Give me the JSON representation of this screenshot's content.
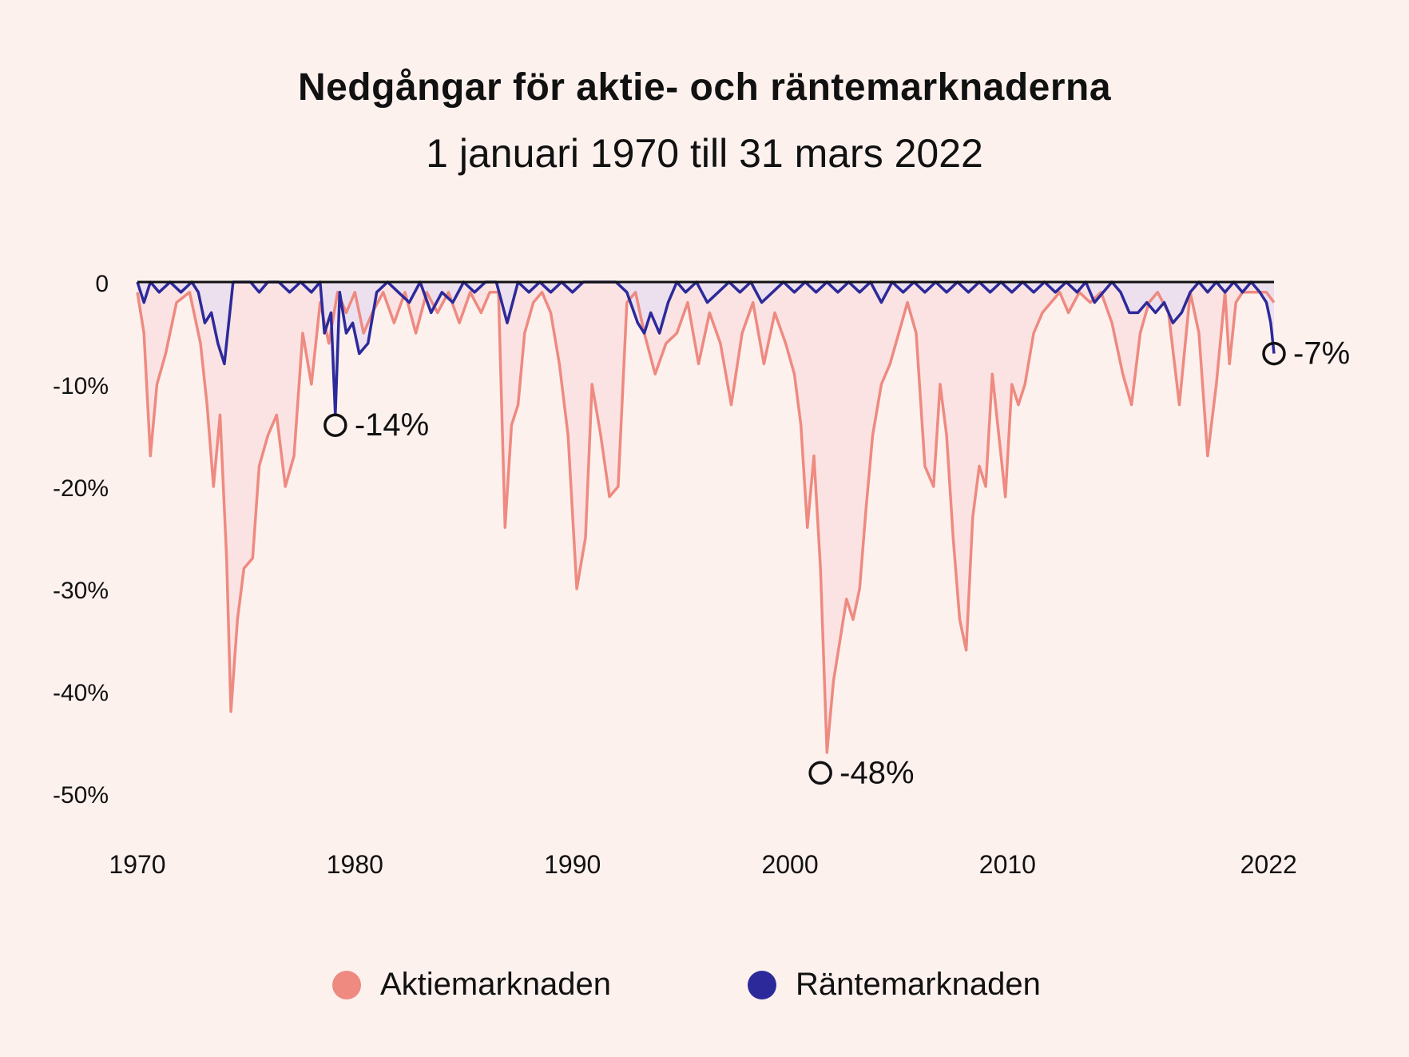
{
  "header": {
    "title": "Nedgångar för aktie- och räntemarknaderna",
    "subtitle": "1 januari 1970 till 31 mars 2022"
  },
  "colors": {
    "stocks": "#ee8a80",
    "stocks_fill": "#fbe3e3",
    "bonds": "#2c2a9a",
    "bonds_fill": "#eadff0",
    "zero_line": "#111111",
    "background": "#fdf1ee"
  },
  "legend": [
    {
      "label": "Aktiemarknaden",
      "color": "#ee8a80"
    },
    {
      "label": "Räntemarknaden",
      "color": "#2c2a9a"
    }
  ],
  "chart_data": {
    "type": "area",
    "title": "Nedgångar för aktie- och räntemarknaderna",
    "subtitle": "1 januari 1970 till 31 mars 2022",
    "xlabel": "",
    "ylabel": "",
    "x_ticks": [
      "1970",
      "1980",
      "1990",
      "2000",
      "2010",
      "2022"
    ],
    "y_ticks": [
      "0",
      "-10%",
      "-20%",
      "-30%",
      "-40%",
      "-50%"
    ],
    "xlim": [
      1970,
      2022.25
    ],
    "ylim": [
      -50,
      0
    ],
    "grid": false,
    "legend_position": "bottom",
    "series": [
      {
        "name": "Aktiemarknaden",
        "color": "#ee8a80",
        "x": [
          1970.0,
          1970.3,
          1970.6,
          1970.9,
          1971.3,
          1971.8,
          1972.4,
          1972.9,
          1973.2,
          1973.5,
          1973.8,
          1974.1,
          1974.3,
          1974.6,
          1974.9,
          1975.3,
          1975.6,
          1976.0,
          1976.4,
          1976.8,
          1977.2,
          1977.6,
          1978.0,
          1978.4,
          1978.8,
          1979.2,
          1979.6,
          1980.0,
          1980.4,
          1980.8,
          1981.3,
          1981.8,
          1982.3,
          1982.8,
          1983.3,
          1983.8,
          1984.3,
          1984.8,
          1985.3,
          1985.8,
          1986.2,
          1986.6,
          1986.9,
          1987.2,
          1987.5,
          1987.8,
          1988.2,
          1988.6,
          1989.0,
          1989.4,
          1989.8,
          1990.2,
          1990.6,
          1990.9,
          1991.3,
          1991.7,
          1992.1,
          1992.5,
          1992.9,
          1993.3,
          1993.8,
          1994.3,
          1994.8,
          1995.3,
          1995.8,
          1996.3,
          1996.8,
          1997.3,
          1997.8,
          1998.3,
          1998.8,
          1999.3,
          1999.8,
          2000.2,
          2000.5,
          2000.8,
          2001.1,
          2001.4,
          2001.7,
          2002.0,
          2002.3,
          2002.6,
          2002.9,
          2003.2,
          2003.5,
          2003.8,
          2004.2,
          2004.6,
          2005.0,
          2005.4,
          2005.8,
          2006.2,
          2006.6,
          2006.9,
          2007.2,
          2007.5,
          2007.8,
          2008.1,
          2008.4,
          2008.7,
          2009.0,
          2009.3,
          2009.6,
          2009.9,
          2010.2,
          2010.5,
          2010.8,
          2011.2,
          2011.6,
          2012.0,
          2012.4,
          2012.8,
          2013.3,
          2013.8,
          2014.3,
          2014.8,
          2015.3,
          2015.7,
          2016.1,
          2016.5,
          2016.9,
          2017.4,
          2017.9,
          2018.4,
          2018.8,
          2019.2,
          2019.6,
          2020.0,
          2020.2,
          2020.5,
          2020.8,
          2021.2,
          2021.6,
          2021.9,
          2022.25
        ],
        "y": [
          -1,
          -5,
          -17,
          -10,
          -7,
          -2,
          -1,
          -6,
          -12,
          -20,
          -13,
          -27,
          -42,
          -33,
          -28,
          -27,
          -18,
          -15,
          -13,
          -20,
          -17,
          -5,
          -10,
          -2,
          -6,
          -1,
          -3,
          -1,
          -5,
          -3,
          -1,
          -4,
          -1,
          -5,
          -1,
          -3,
          -1,
          -4,
          -1,
          -3,
          -1,
          -1,
          -24,
          -14,
          -12,
          -5,
          -2,
          -1,
          -3,
          -8,
          -15,
          -30,
          -25,
          -10,
          -15,
          -21,
          -20,
          -2,
          -1,
          -5,
          -9,
          -6,
          -5,
          -2,
          -8,
          -3,
          -6,
          -12,
          -5,
          -2,
          -8,
          -3,
          -6,
          -9,
          -14,
          -24,
          -17,
          -28,
          -46,
          -39,
          -35,
          -31,
          -33,
          -30,
          -22,
          -15,
          -10,
          -8,
          -5,
          -2,
          -5,
          -18,
          -20,
          -10,
          -15,
          -25,
          -33,
          -36,
          -23,
          -18,
          -20,
          -9,
          -15,
          -21,
          -10,
          -12,
          -10,
          -5,
          -3,
          -2,
          -1,
          -3,
          -1,
          -2,
          -1,
          -4,
          -9,
          -12,
          -5,
          -2,
          -1,
          -3,
          -12,
          -1,
          -5,
          -17,
          -10,
          -1,
          -8,
          -2,
          -1,
          -1,
          -1,
          -1,
          -2
        ]
      },
      {
        "name": "Räntemarknaden",
        "color": "#2c2a9a",
        "x": [
          1970.0,
          1970.3,
          1970.6,
          1971.0,
          1971.5,
          1972.0,
          1972.5,
          1972.8,
          1973.1,
          1973.4,
          1973.7,
          1974.0,
          1974.4,
          1974.8,
          1975.2,
          1975.6,
          1976.0,
          1976.5,
          1977.0,
          1977.5,
          1978.0,
          1978.4,
          1978.6,
          1978.9,
          1979.1,
          1979.3,
          1979.6,
          1979.9,
          1980.2,
          1980.6,
          1981.0,
          1981.5,
          1982.0,
          1982.5,
          1983.0,
          1983.5,
          1984.0,
          1984.5,
          1985.0,
          1985.5,
          1986.0,
          1986.5,
          1987.0,
          1987.5,
          1988.0,
          1988.5,
          1989.0,
          1989.5,
          1990.0,
          1990.5,
          1991.0,
          1991.5,
          1992.0,
          1992.5,
          1993.0,
          1993.3,
          1993.6,
          1994.0,
          1994.4,
          1994.8,
          1995.2,
          1995.7,
          1996.2,
          1996.7,
          1997.2,
          1997.7,
          1998.2,
          1998.7,
          1999.2,
          1999.7,
          2000.2,
          2000.7,
          2001.2,
          2001.7,
          2002.2,
          2002.7,
          2003.2,
          2003.7,
          2004.2,
          2004.7,
          2005.2,
          2005.7,
          2006.2,
          2006.7,
          2007.2,
          2007.7,
          2008.2,
          2008.7,
          2009.2,
          2009.7,
          2010.2,
          2010.7,
          2011.2,
          2011.7,
          2012.2,
          2012.7,
          2013.2,
          2013.6,
          2014.0,
          2014.4,
          2014.8,
          2015.2,
          2015.6,
          2016.0,
          2016.4,
          2016.8,
          2017.2,
          2017.6,
          2018.0,
          2018.4,
          2018.8,
          2019.2,
          2019.6,
          2020.0,
          2020.4,
          2020.8,
          2021.2,
          2021.6,
          2021.9,
          2022.1,
          2022.25
        ],
        "y": [
          0,
          -2,
          0,
          -1,
          0,
          -1,
          0,
          -1,
          -4,
          -3,
          -6,
          -8,
          0,
          0,
          0,
          -1,
          0,
          0,
          -1,
          0,
          -1,
          0,
          -5,
          -3,
          -13,
          -1,
          -5,
          -4,
          -7,
          -6,
          -1,
          0,
          -1,
          -2,
          0,
          -3,
          -1,
          -2,
          0,
          -1,
          0,
          0,
          -4,
          0,
          -1,
          0,
          -1,
          0,
          -1,
          0,
          0,
          0,
          0,
          -1,
          -4,
          -5,
          -3,
          -5,
          -2,
          0,
          -1,
          0,
          -2,
          -1,
          0,
          -1,
          0,
          -2,
          -1,
          0,
          -1,
          0,
          -1,
          0,
          -1,
          0,
          -1,
          0,
          -2,
          0,
          -1,
          0,
          -1,
          0,
          -1,
          0,
          -1,
          0,
          -1,
          0,
          -1,
          0,
          -1,
          0,
          -1,
          0,
          -1,
          0,
          -2,
          -1,
          0,
          -1,
          -3,
          -3,
          -2,
          -3,
          -2,
          -4,
          -3,
          -1,
          0,
          -1,
          0,
          -1,
          0,
          -1,
          0,
          -1,
          -2,
          -4,
          -7
        ]
      }
    ],
    "annotations": [
      {
        "series": "Räntemarknaden",
        "x": 1979.1,
        "y": -14,
        "label": "-14%"
      },
      {
        "series": "Aktiemarknaden",
        "x": 2001.4,
        "y": -48,
        "label": "-48%"
      },
      {
        "series": "Räntemarknaden",
        "x": 2022.25,
        "y": -7,
        "label": "-7%"
      }
    ]
  }
}
